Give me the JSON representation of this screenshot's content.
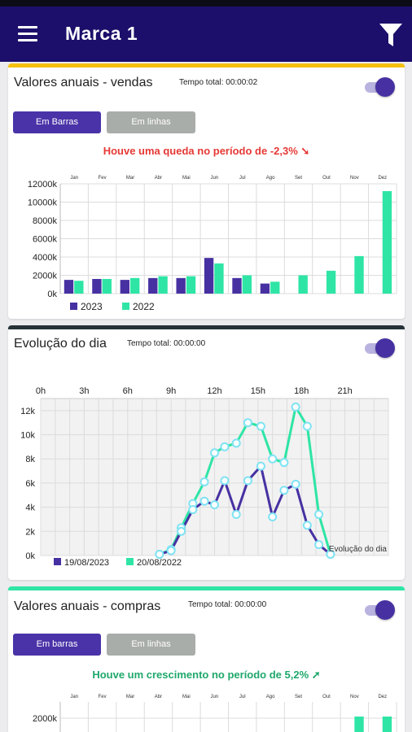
{
  "header": {
    "title": "Marca 1"
  },
  "cards": [
    {
      "title": "Valores anuais - vendas",
      "time_label": "Tempo total: 00:00:02",
      "btn_bars": "Em Barras",
      "btn_lines": "Em linhas",
      "trend_text": "Houve uma queda no período de -2,3%",
      "trend_icon": "arrow-down-icon",
      "trend_color": "#e53935"
    },
    {
      "title": "Evolução do dia",
      "time_label": "Tempo total: 00:00:00"
    },
    {
      "title": "Valores anuais - compras",
      "time_label": "Tempo total: 00:00:00",
      "btn_bars": "Em barras",
      "btn_lines": "Em linhas",
      "trend_text": "Houve um crescimento no período de 5,2%",
      "trend_icon": "arrow-up-icon",
      "trend_color": "#1fa86b"
    }
  ],
  "colors": {
    "primary": "#1b0f6b",
    "series_a": "#4731a2",
    "series_b": "#2ee5a5"
  },
  "chart_data": [
    {
      "type": "bar",
      "categories": [
        "Jan",
        "Fev",
        "Mar",
        "Abr",
        "Mai",
        "Jun",
        "Jul",
        "Ago",
        "Set",
        "Out",
        "Nov",
        "Dez"
      ],
      "series": [
        {
          "name": "2023",
          "values": [
            1500,
            1600,
            1500,
            1700,
            1700,
            3900,
            1700,
            1100,
            null,
            null,
            null,
            null
          ]
        },
        {
          "name": "2022",
          "values": [
            1400,
            1600,
            1700,
            1900,
            1900,
            3300,
            2000,
            1300,
            2000,
            2500,
            4100,
            11200
          ]
        }
      ],
      "yticks": [
        "0k",
        "2000k",
        "4000k",
        "6000k",
        "8000k",
        "10000k",
        "12000k"
      ],
      "ylim": [
        0,
        12000
      ],
      "grid": true,
      "legend": "bottom-left"
    },
    {
      "type": "line",
      "x": [
        8.2,
        9,
        9.7,
        10.5,
        11.3,
        12,
        12.7,
        13.5,
        14.3,
        15.2,
        16,
        16.8,
        17.6,
        18.4,
        19.2,
        20,
        20.8,
        21.5,
        22.3
      ],
      "xticks": [
        "0h",
        "3h",
        "6h",
        "9h",
        "12h",
        "15h",
        "18h",
        "21h"
      ],
      "series": [
        {
          "name": "19/08/2023",
          "values": [
            0.1,
            0.4,
            2,
            3.8,
            4.5,
            4.2,
            6.2,
            3.4,
            6.2,
            7.4,
            3.2,
            5.4,
            5.9,
            2.5,
            0.9,
            0.1,
            null,
            null,
            null
          ]
        },
        {
          "name": "20/08/2022",
          "values": [
            0.1,
            0.5,
            2.3,
            4.3,
            6.1,
            8.5,
            9,
            9.3,
            11,
            10.7,
            8,
            7.7,
            12.3,
            10.7,
            3.4,
            0.1,
            null,
            null,
            null
          ]
        }
      ],
      "yticks": [
        "0k",
        "2k",
        "4k",
        "6k",
        "8k",
        "10k",
        "12k"
      ],
      "ylim": [
        0,
        13
      ],
      "xlim": [
        0,
        24
      ],
      "grid": true,
      "legend": "bottom-left",
      "annotation": "Evolução do dia"
    },
    {
      "type": "bar",
      "categories": [
        "Jan",
        "Fev",
        "Mar",
        "Abr",
        "Mai",
        "Jun",
        "Jul",
        "Ago",
        "Set",
        "Out",
        "Nov",
        "Dez"
      ],
      "series": [
        {
          "name": "",
          "values": [
            null,
            null,
            null,
            null,
            null,
            null,
            null,
            null,
            null,
            null,
            null,
            null
          ]
        },
        {
          "name": "",
          "values": [
            null,
            null,
            null,
            null,
            null,
            null,
            null,
            null,
            null,
            null,
            2000,
            2000
          ]
        }
      ],
      "yticks": [
        "2000k"
      ],
      "grid": true
    }
  ]
}
